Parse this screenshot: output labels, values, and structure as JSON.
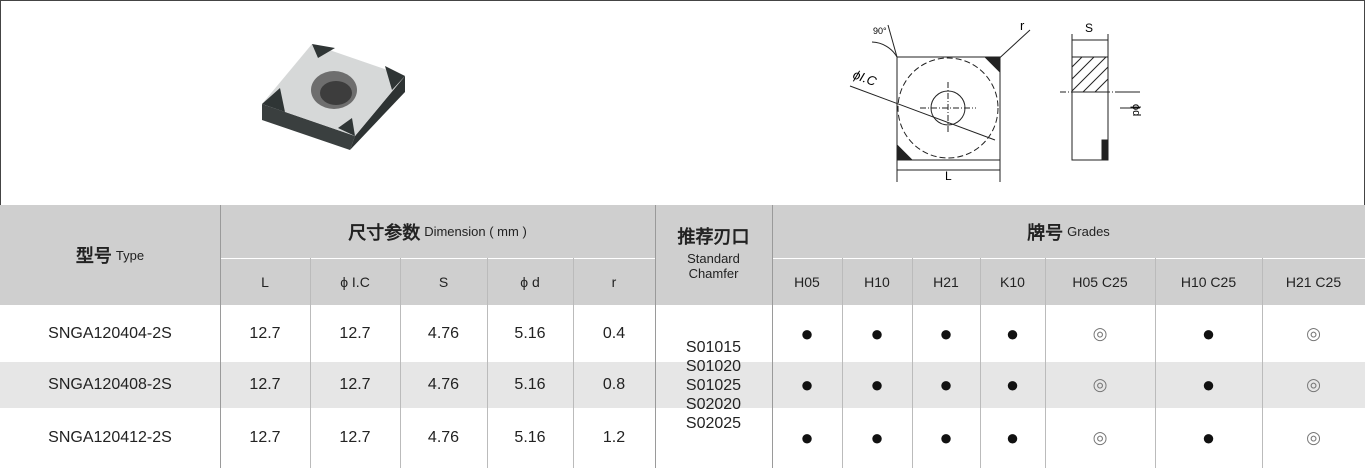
{
  "header": {
    "diagram_labels": {
      "angle": "90°",
      "corner_radius": "r",
      "inscribed_circle": "ϕI.C",
      "length": "L",
      "thickness": "S",
      "hole_diameter": "ϕd"
    }
  },
  "table": {
    "columns": {
      "type": {
        "zh": "型号",
        "en": "Type"
      },
      "dimension": {
        "zh": "尺寸参数",
        "en": "Dimension ( mm )"
      },
      "dimension_subcolumns": [
        "L",
        "ϕ I.C",
        "S",
        "ϕ d",
        "r"
      ],
      "chamfer": {
        "zh": "推荐刃口",
        "en": [
          "Standard",
          "Chamfer"
        ]
      },
      "grades": {
        "zh": "牌号",
        "en": "Grades"
      },
      "grade_subcolumns": [
        "H05",
        "H10",
        "H21",
        "K10",
        "H05 C25",
        "H10 C25",
        "H21 C25"
      ]
    },
    "rows": [
      {
        "type": "SNGA120404-2S",
        "dimensions": [
          "12.7",
          "12.7",
          "4.76",
          "5.16",
          "0.4"
        ],
        "grades": [
          "●",
          "●",
          "●",
          "●",
          "◎",
          "●",
          "◎"
        ]
      },
      {
        "type": "SNGA120408-2S",
        "dimensions": [
          "12.7",
          "12.7",
          "4.76",
          "5.16",
          "0.8"
        ],
        "grades": [
          "●",
          "●",
          "●",
          "●",
          "◎",
          "●",
          "◎"
        ]
      },
      {
        "type": "SNGA120412-2S",
        "dimensions": [
          "12.7",
          "12.7",
          "4.76",
          "5.16",
          "1.2"
        ],
        "grades": [
          "●",
          "●",
          "●",
          "●",
          "◎",
          "●",
          "◎"
        ]
      }
    ],
    "chamfers": [
      "S01015",
      "S01020",
      "S01025",
      "S02020",
      "S02025"
    ]
  }
}
